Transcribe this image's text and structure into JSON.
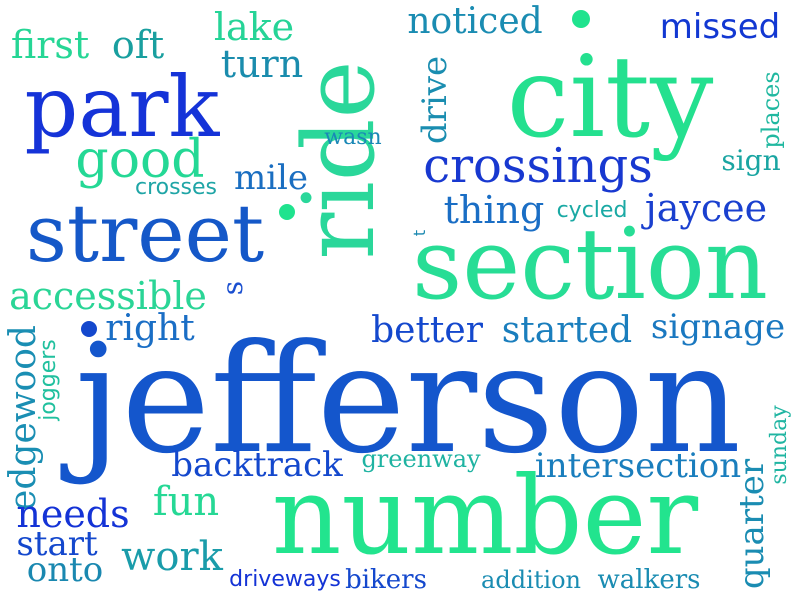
{
  "palette": {
    "dark_blue": "#1433d6",
    "mid_blue": "#1560c8",
    "teal": "#1a9aa8",
    "mint": "#1fe38e",
    "green": "#26d49a"
  },
  "words": [
    {
      "key": "jefferson",
      "text": "jefferson"
    },
    {
      "key": "number",
      "text": "number"
    },
    {
      "key": "city",
      "text": "city"
    },
    {
      "key": "section",
      "text": "section"
    },
    {
      "key": "ride",
      "text": "ride"
    },
    {
      "key": "park",
      "text": "park"
    },
    {
      "key": "street",
      "text": "street"
    },
    {
      "key": "crossings",
      "text": "crossings"
    },
    {
      "key": "good",
      "text": "good"
    },
    {
      "key": "accessible",
      "text": "accessible"
    },
    {
      "key": "first",
      "text": "first"
    },
    {
      "key": "oft",
      "text": "oft"
    },
    {
      "key": "lake",
      "text": "lake"
    },
    {
      "key": "turn",
      "text": "turn"
    },
    {
      "key": "noticed",
      "text": "noticed"
    },
    {
      "key": "missed",
      "text": "missed"
    },
    {
      "key": "drive",
      "text": "drive"
    },
    {
      "key": "places",
      "text": "places"
    },
    {
      "key": "wasn",
      "text": "wasn"
    },
    {
      "key": "sign",
      "text": "sign"
    },
    {
      "key": "mile",
      "text": "mile"
    },
    {
      "key": "crosses",
      "text": "crosses"
    },
    {
      "key": "thing",
      "text": "thing"
    },
    {
      "key": "cycled",
      "text": "cycled"
    },
    {
      "key": "jaycee",
      "text": "jaycee"
    },
    {
      "key": "t",
      "text": "t"
    },
    {
      "key": "s",
      "text": "s"
    },
    {
      "key": "right",
      "text": "right"
    },
    {
      "key": "better",
      "text": "better"
    },
    {
      "key": "started",
      "text": "started"
    },
    {
      "key": "signage",
      "text": "signage"
    },
    {
      "key": "edgewood",
      "text": "edgewood"
    },
    {
      "key": "joggers",
      "text": "joggers"
    },
    {
      "key": "backtrack",
      "text": "backtrack"
    },
    {
      "key": "greenway",
      "text": "greenway"
    },
    {
      "key": "intersection",
      "text": "intersection"
    },
    {
      "key": "sunday",
      "text": "sunday"
    },
    {
      "key": "quarter",
      "text": "quarter"
    },
    {
      "key": "fun",
      "text": "fun"
    },
    {
      "key": "needs",
      "text": "needs"
    },
    {
      "key": "start",
      "text": "start"
    },
    {
      "key": "onto",
      "text": "onto"
    },
    {
      "key": "work",
      "text": "work"
    },
    {
      "key": "driveways",
      "text": "driveways"
    },
    {
      "key": "bikers",
      "text": "bikers"
    },
    {
      "key": "addition",
      "text": "addition"
    },
    {
      "key": "walkers",
      "text": "walkers"
    }
  ]
}
